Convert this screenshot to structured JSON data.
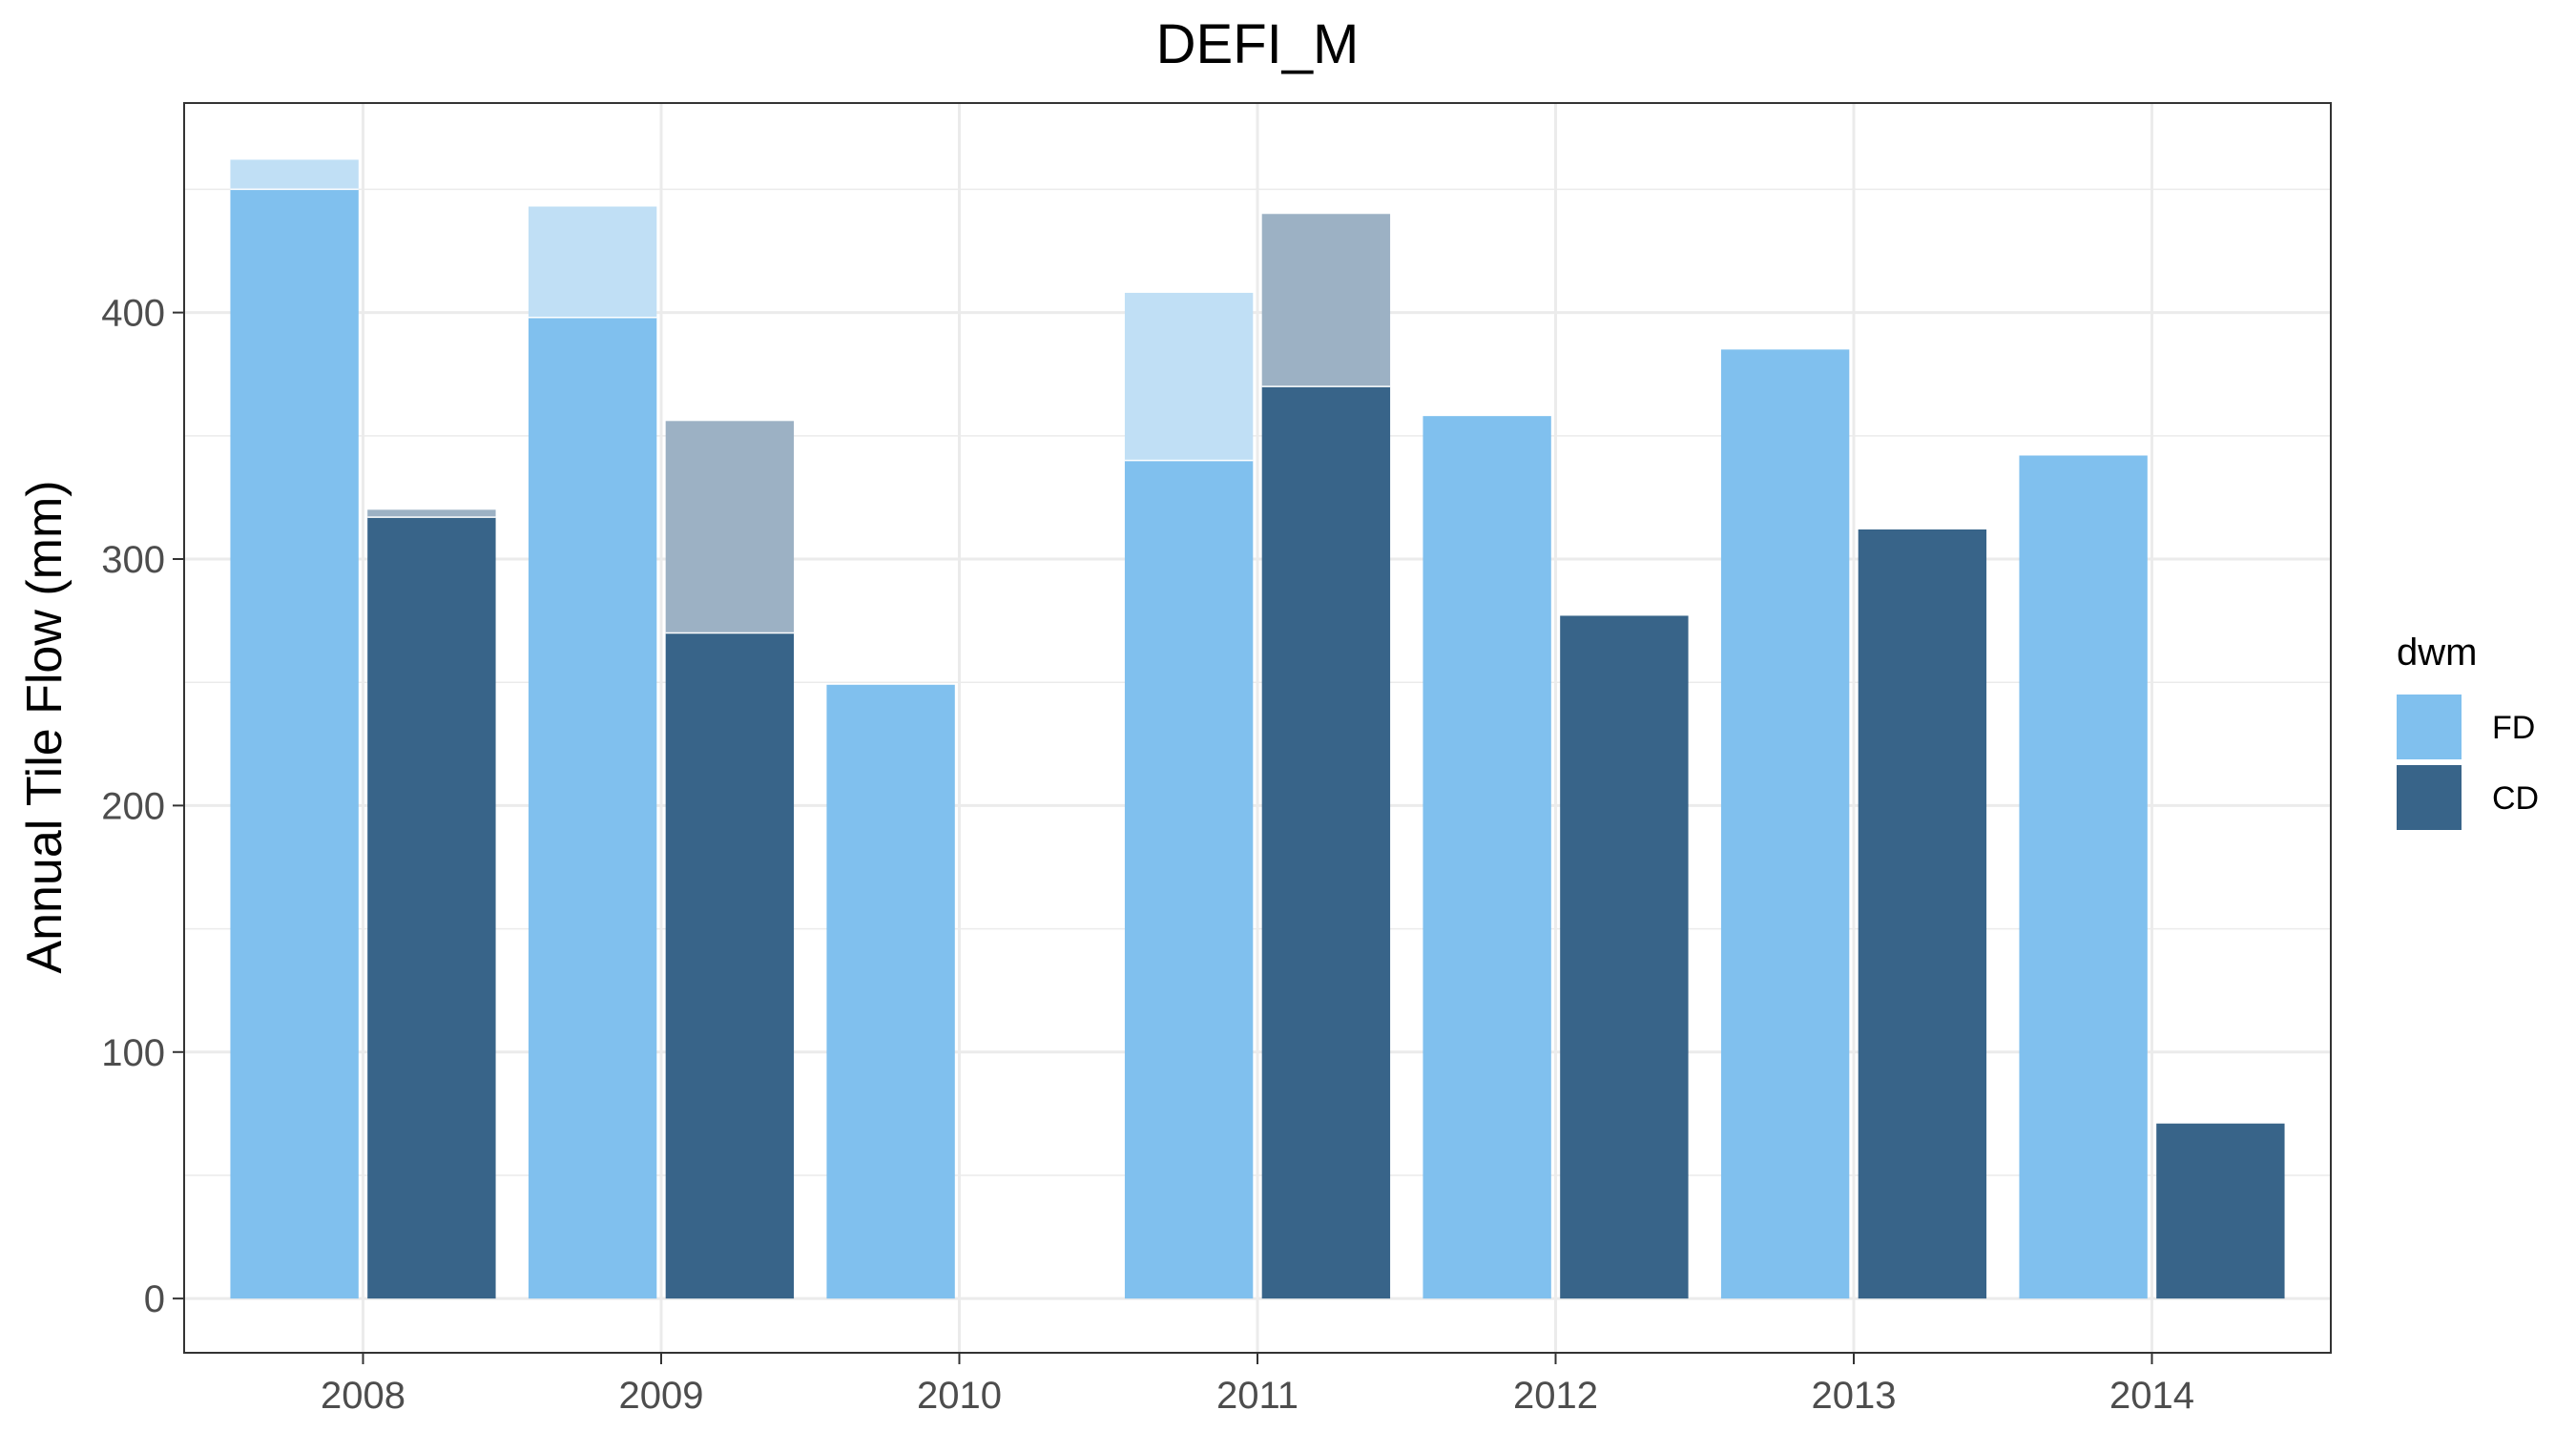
{
  "chart_data": {
    "type": "bar",
    "title": "DEFI_M",
    "xlabel": "",
    "ylabel": "Annual Tile Flow (mm)",
    "categories": [
      "2008",
      "2009",
      "2010",
      "2011",
      "2012",
      "2013",
      "2014"
    ],
    "ylim": [
      -22,
      485
    ],
    "yticks": [
      0,
      100,
      200,
      300,
      400
    ],
    "grid": true,
    "series": [
      {
        "name": "FD",
        "color": "#80c0ee",
        "values": [
          450,
          398,
          249,
          340,
          358,
          385,
          342
        ]
      },
      {
        "name": "CD",
        "color": "#386489",
        "values": [
          317,
          270,
          null,
          370,
          277,
          312,
          71
        ]
      }
    ],
    "overlay_series": [
      {
        "dwm": "FD",
        "color": "#c0dff5",
        "values": [
          462,
          443,
          null,
          408,
          null,
          null,
          null
        ]
      },
      {
        "dwm": "CD",
        "color": "#9cb1c4",
        "values": [
          320,
          356,
          null,
          440,
          null,
          null,
          null
        ]
      }
    ],
    "legend": {
      "title": "dwm",
      "position": "right",
      "entries": [
        "FD",
        "CD"
      ]
    }
  }
}
